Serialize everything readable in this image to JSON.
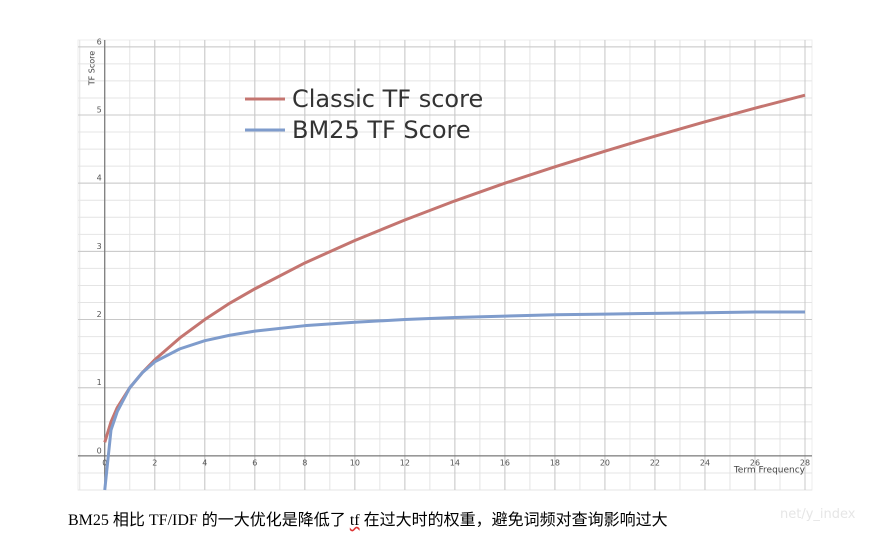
{
  "chart_data": {
    "type": "line",
    "x": [
      0,
      0.25,
      0.5,
      1,
      1.5,
      2,
      3,
      4,
      5,
      6,
      8,
      10,
      12,
      14,
      16,
      18,
      20,
      22,
      24,
      26,
      28
    ],
    "series": [
      {
        "name": "Classic TF score",
        "color": "#c47570",
        "values": [
          0.2,
          0.5,
          0.71,
          1,
          1.22,
          1.41,
          1.73,
          2,
          2.24,
          2.45,
          2.83,
          3.16,
          3.46,
          3.74,
          4,
          4.24,
          4.47,
          4.69,
          4.9,
          5.1,
          5.29
        ]
      },
      {
        "name": "BM25 TF Score",
        "color": "#7f9ccc",
        "values": [
          -0.5,
          0.38,
          0.65,
          1,
          1.22,
          1.38,
          1.57,
          1.69,
          1.77,
          1.83,
          1.91,
          1.96,
          2.0,
          2.03,
          2.05,
          2.07,
          2.08,
          2.09,
          2.1,
          2.11,
          2.11
        ]
      }
    ],
    "xlim": [
      -1.07,
      28.28
    ],
    "ylim": [
      -0.5,
      6.1
    ],
    "xticks": [
      0,
      2,
      4,
      6,
      8,
      10,
      12,
      14,
      16,
      18,
      20,
      22,
      24,
      26,
      28
    ],
    "yticks": [
      0,
      1,
      2,
      3,
      4,
      5,
      6
    ],
    "x_label": "Term Frequency",
    "y_label": "TF Score",
    "grid": true,
    "legend": "upper left"
  },
  "caption": [
    "BM25 相比 TF/IDF 的一大优化是降低了 ",
    "tf",
    " 在过大时的权重，避免词频对查询影响过大"
  ],
  "watermark": "net/y_index"
}
